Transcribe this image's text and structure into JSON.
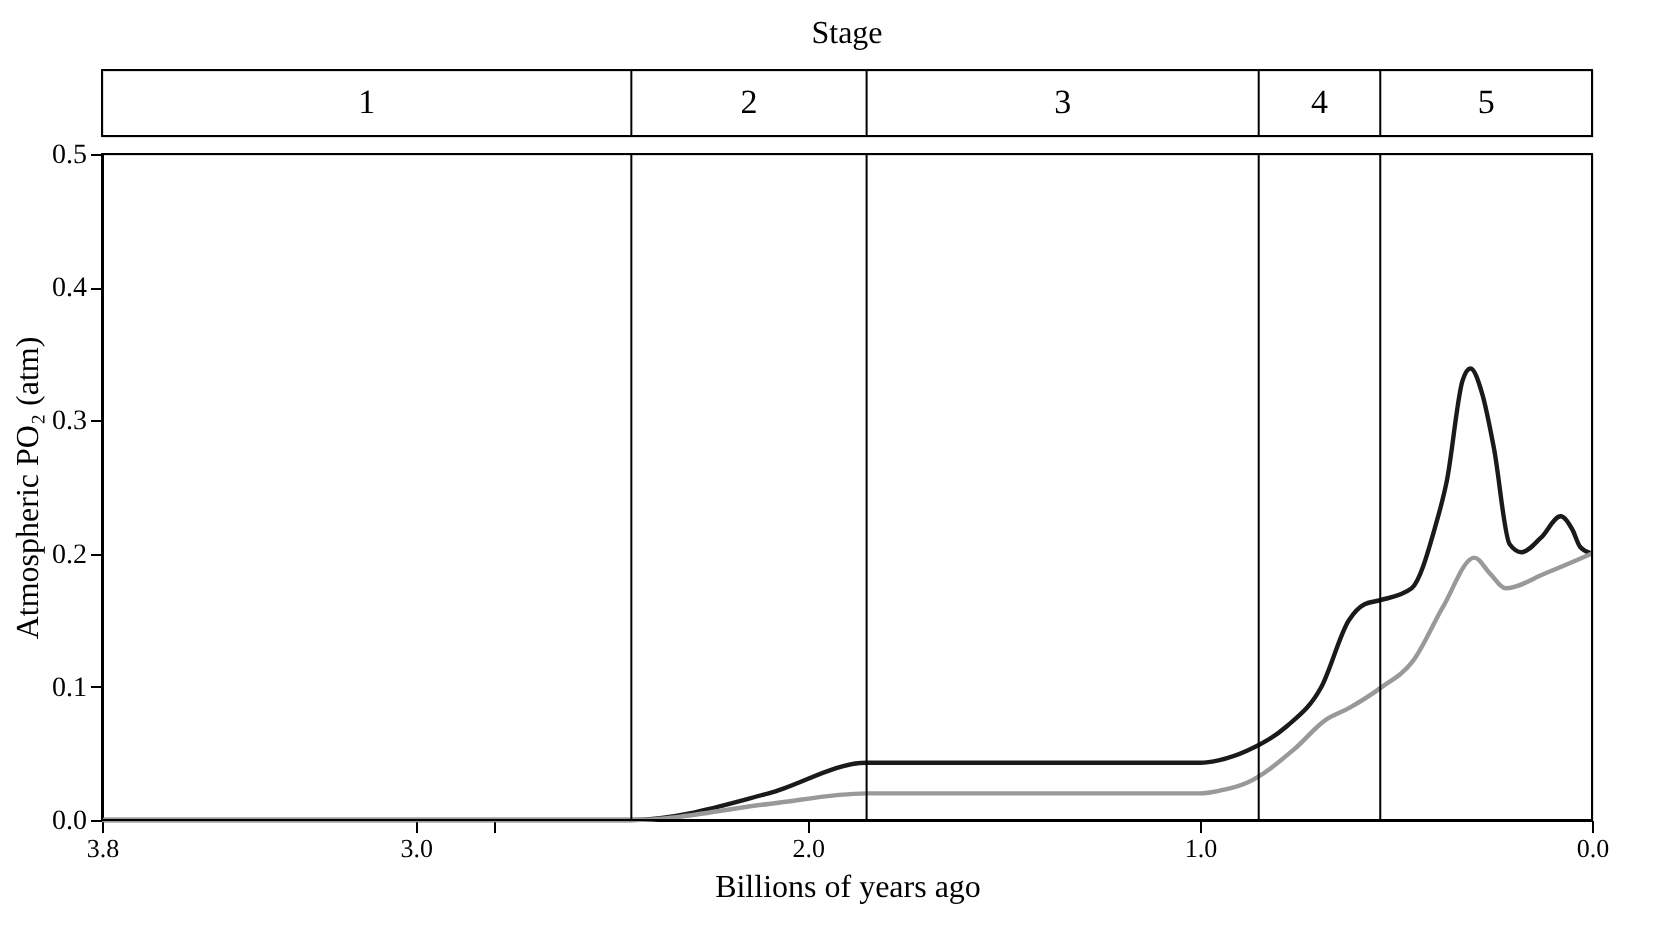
{
  "chart_data": {
    "type": "line",
    "title": "Stage",
    "xlabel": "Billions of years ago",
    "ylabel": "Atmospheric PO₂ (atm)",
    "xlim": [
      3.8,
      0.0
    ],
    "xticks": [
      {
        "value": 3.8,
        "label": "3.8"
      },
      {
        "value": 3.0,
        "label": "3.0"
      },
      {
        "value": 2.8,
        "label": null
      },
      {
        "value": 2.0,
        "label": "2.0"
      },
      {
        "value": 1.0,
        "label": "1.0"
      },
      {
        "value": 0.0,
        "label": "0.0"
      }
    ],
    "ylim": [
      0,
      0.5
    ],
    "yticks": [
      {
        "value": 0,
        "label": "0.0"
      },
      0.1,
      0.2,
      0.3,
      0.4,
      0.5
    ],
    "line_style": "solid",
    "marker": "none",
    "series": [
      {
        "color": "#1a1a1a",
        "x": [
          3.8,
          2.45,
          2.1,
          1.85,
          1.0,
          0.95,
          0.88,
          0.78,
          0.69,
          0.62,
          0.58,
          0.54,
          0.46,
          0.4,
          0.37,
          0.33,
          0.31,
          0.28,
          0.25,
          0.21,
          0.18,
          0.13,
          0.08,
          0.05,
          0.03,
          0.0
        ],
        "values": [
          0,
          0,
          0.02,
          0.043,
          0.043,
          0.045,
          0.052,
          0.07,
          0.1,
          0.15,
          0.162,
          0.165,
          0.174,
          0.22,
          0.255,
          0.33,
          0.339,
          0.32,
          0.279,
          0.207,
          0.201,
          0.212,
          0.228,
          0.218,
          0.205,
          0.2
        ]
      },
      {
        "color": "#999999",
        "x": [
          3.8,
          2.45,
          2.1,
          1.85,
          1.0,
          0.95,
          0.88,
          0.76,
          0.68,
          0.62,
          0.54,
          0.455,
          0.38,
          0.3,
          0.26,
          0.22,
          0.12,
          0.0
        ],
        "values": [
          0,
          0,
          0.012,
          0.02,
          0.02,
          0.022,
          0.028,
          0.053,
          0.075,
          0.084,
          0.099,
          0.12,
          0.16,
          0.197,
          0.185,
          0.174,
          0.185,
          0.2
        ]
      }
    ],
    "ref_lines": [
      {
        "axis": "x",
        "value": 2.45,
        "color": "#000000"
      },
      {
        "axis": "x",
        "value": 1.85,
        "color": "#000000"
      },
      {
        "axis": "x",
        "value": 0.85,
        "color": "#000000"
      },
      {
        "axis": "x",
        "value": 0.54,
        "color": "#000000"
      }
    ],
    "annotations": [
      "1",
      "2",
      "3",
      "4",
      "5"
    ]
  }
}
